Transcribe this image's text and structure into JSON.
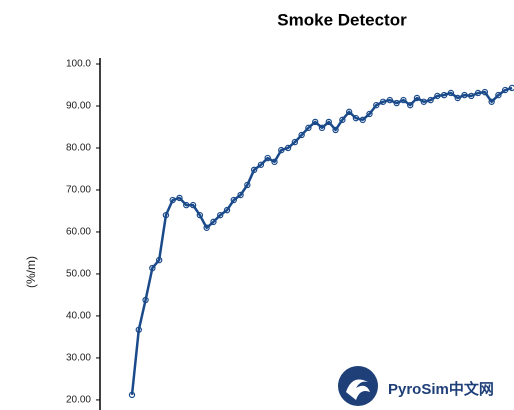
{
  "chart_data": {
    "type": "line",
    "title": "Smoke Detector",
    "y_label": "(%/m)",
    "watermark": "PyroSim中文网",
    "ylim": [
      17.6,
      100
    ],
    "yticks": [
      {
        "value": 20,
        "label": "20.00"
      },
      {
        "value": 30,
        "label": "30.00"
      },
      {
        "value": 40,
        "label": "40.00"
      },
      {
        "value": 50,
        "label": "50.00"
      },
      {
        "value": 60,
        "label": "60.00"
      },
      {
        "value": 70,
        "label": "70.00"
      },
      {
        "value": 80,
        "label": "80.00"
      },
      {
        "value": 90,
        "label": "90.00"
      },
      {
        "value": 100,
        "label": "100.0"
      }
    ],
    "series": [
      {
        "color": "#1a4a8a",
        "values": [
          21.2,
          36.7,
          43.8,
          51.4,
          53.3,
          64.0,
          67.6,
          68.1,
          66.4,
          66.4,
          64.0,
          61.0,
          62.4,
          64.0,
          65.2,
          67.6,
          68.8,
          71.2,
          74.8,
          76.0,
          77.6,
          76.7,
          79.5,
          80.0,
          81.4,
          83.1,
          84.8,
          86.2,
          84.8,
          86.2,
          84.3,
          86.7,
          88.6,
          87.1,
          86.7,
          88.1,
          90.2,
          91.0,
          91.4,
          90.7,
          91.4,
          90.2,
          91.9,
          91.0,
          91.4,
          92.4,
          92.6,
          93.1,
          91.9,
          92.6,
          92.4,
          93.1,
          93.3,
          91.0,
          92.6,
          93.8,
          94.3
        ]
      }
    ]
  }
}
